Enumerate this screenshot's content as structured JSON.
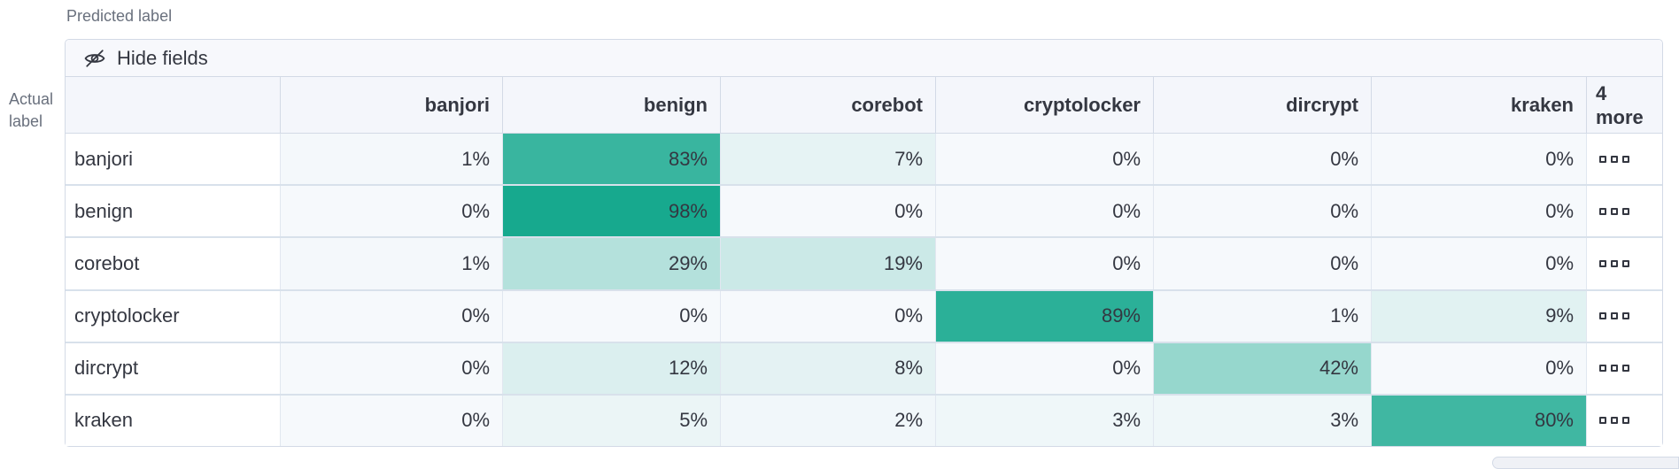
{
  "axes": {
    "predicted_label": "Predicted label",
    "actual_label_line1": "Actual",
    "actual_label_line2": "label"
  },
  "toolbar": {
    "hide_fields_label": "Hide fields",
    "hide_fields_icon": "eye-closed-icon"
  },
  "matrix": {
    "columns": [
      "banjori",
      "benign",
      "corebot",
      "cryptolocker",
      "dircrypt",
      "kraken"
    ],
    "more_column": {
      "line1": "4",
      "line2": "more",
      "cell_icon": "boxes-horizontal-icon"
    },
    "rows": [
      {
        "label": "banjori",
        "values": [
          1,
          83,
          7,
          0,
          0,
          0
        ]
      },
      {
        "label": "benign",
        "values": [
          0,
          98,
          0,
          0,
          0,
          0
        ]
      },
      {
        "label": "corebot",
        "values": [
          1,
          29,
          19,
          0,
          0,
          0
        ]
      },
      {
        "label": "cryptolocker",
        "values": [
          0,
          0,
          0,
          89,
          1,
          9
        ]
      },
      {
        "label": "dircrypt",
        "values": [
          0,
          12,
          8,
          0,
          42,
          0
        ]
      },
      {
        "label": "kraken",
        "values": [
          0,
          5,
          2,
          3,
          3,
          80
        ]
      }
    ],
    "value_suffix": "%"
  },
  "colors": {
    "heat_low": "#F6F9FC",
    "heat_high": "#12A78C",
    "border": "#D3DAE6",
    "header_bg": "#F4F6FB",
    "toolbar_bg": "#F7F8FC",
    "text": "#343741",
    "muted_text": "#69707D"
  }
}
